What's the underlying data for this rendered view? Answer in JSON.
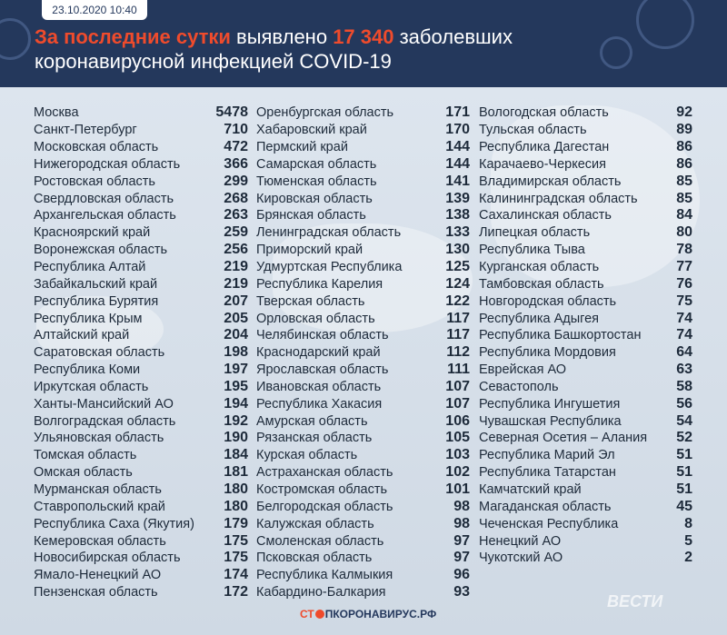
{
  "header": {
    "date": "23.10.2020 10:40",
    "title_lead": "За последние сутки",
    "title_mid": " выявлено ",
    "title_count": "17 340",
    "title_tail": " заболевших",
    "title_line2": "коронавирусной инфекцией COVID-19"
  },
  "columns": [
    [
      {
        "name": "Москва",
        "value": "5478"
      },
      {
        "name": "Санкт-Петербург",
        "value": "710"
      },
      {
        "name": "Московская область",
        "value": "472"
      },
      {
        "name": "Нижегородская область",
        "value": "366"
      },
      {
        "name": "Ростовская область",
        "value": "299"
      },
      {
        "name": "Свердловская область",
        "value": "268"
      },
      {
        "name": "Архангельская область",
        "value": "263"
      },
      {
        "name": "Красноярский край",
        "value": "259"
      },
      {
        "name": "Воронежская область",
        "value": "256"
      },
      {
        "name": "Республика Алтай",
        "value": "219"
      },
      {
        "name": "Забайкальский край",
        "value": "219"
      },
      {
        "name": "Республика Бурятия",
        "value": "207"
      },
      {
        "name": "Республика Крым",
        "value": "205"
      },
      {
        "name": "Алтайский край",
        "value": "204"
      },
      {
        "name": "Саратовская область",
        "value": "198"
      },
      {
        "name": "Республика Коми",
        "value": "197"
      },
      {
        "name": "Иркутская область",
        "value": "195"
      },
      {
        "name": "Ханты-Мансийский АО",
        "value": "194"
      },
      {
        "name": "Волгоградская область",
        "value": "192"
      },
      {
        "name": "Ульяновская область",
        "value": "190"
      },
      {
        "name": "Томская область",
        "value": "184"
      },
      {
        "name": "Омская область",
        "value": "181"
      },
      {
        "name": "Мурманская область",
        "value": "180"
      },
      {
        "name": "Ставропольский край",
        "value": "180"
      },
      {
        "name": "Республика Саха (Якутия)",
        "value": "179"
      },
      {
        "name": "Кемеровская область",
        "value": "175"
      },
      {
        "name": "Новосибирская область",
        "value": "175"
      },
      {
        "name": "Ямало-Ненецкий АО",
        "value": "174"
      },
      {
        "name": "Пензенская область",
        "value": "172"
      }
    ],
    [
      {
        "name": "Оренбургская область",
        "value": "171"
      },
      {
        "name": "Хабаровский край",
        "value": "170"
      },
      {
        "name": "Пермский край",
        "value": "144"
      },
      {
        "name": "Самарская область",
        "value": "144"
      },
      {
        "name": "Тюменская область",
        "value": "141"
      },
      {
        "name": "Кировская область",
        "value": "139"
      },
      {
        "name": "Брянская область",
        "value": "138"
      },
      {
        "name": "Ленинградская область",
        "value": "133"
      },
      {
        "name": "Приморский край",
        "value": "130"
      },
      {
        "name": "Удмуртская Республика",
        "value": "125"
      },
      {
        "name": "Республика Карелия",
        "value": "124"
      },
      {
        "name": "Тверская область",
        "value": "122"
      },
      {
        "name": "Орловская область",
        "value": "117"
      },
      {
        "name": "Челябинская область",
        "value": "117"
      },
      {
        "name": "Краснодарский край",
        "value": "112"
      },
      {
        "name": "Ярославская область",
        "value": "111"
      },
      {
        "name": "Ивановская область",
        "value": "107"
      },
      {
        "name": "Республика Хакасия",
        "value": "107"
      },
      {
        "name": "Амурская область",
        "value": "106"
      },
      {
        "name": "Рязанская область",
        "value": "105"
      },
      {
        "name": "Курская область",
        "value": "103"
      },
      {
        "name": "Астраханская область",
        "value": "102"
      },
      {
        "name": "Костромская область",
        "value": "101"
      },
      {
        "name": "Белгородская область",
        "value": "98"
      },
      {
        "name": "Калужская область",
        "value": "98"
      },
      {
        "name": "Смоленская область",
        "value": "97"
      },
      {
        "name": "Псковская область",
        "value": "97"
      },
      {
        "name": "Республика Калмыкия",
        "value": "96"
      },
      {
        "name": "Кабардино-Балкария",
        "value": "93"
      }
    ],
    [
      {
        "name": "Вологодская область",
        "value": "92"
      },
      {
        "name": "Тульская область",
        "value": "89"
      },
      {
        "name": "Республика Дагестан",
        "value": "86"
      },
      {
        "name": "Карачаево-Черкесия",
        "value": "86"
      },
      {
        "name": "Владимирская область",
        "value": "85"
      },
      {
        "name": "Калининградская область",
        "value": "85"
      },
      {
        "name": "Сахалинская область",
        "value": "84"
      },
      {
        "name": "Липецкая область",
        "value": "80"
      },
      {
        "name": "Республика Тыва",
        "value": "78"
      },
      {
        "name": "Курганская область",
        "value": "77"
      },
      {
        "name": "Тамбовская область",
        "value": "76"
      },
      {
        "name": "Новгородская область",
        "value": "75"
      },
      {
        "name": "Республика Адыгея",
        "value": "74"
      },
      {
        "name": "Республика Башкортостан",
        "value": "74"
      },
      {
        "name": "Республика Мордовия",
        "value": "64"
      },
      {
        "name": "Еврейская АО",
        "value": "63"
      },
      {
        "name": "Севастополь",
        "value": "58"
      },
      {
        "name": "Республика Ингушетия",
        "value": "56"
      },
      {
        "name": "Чувашская Республика",
        "value": "54"
      },
      {
        "name": "Северная Осетия – Алания",
        "value": "52"
      },
      {
        "name": "Республика Марий Эл",
        "value": "51"
      },
      {
        "name": "Республика Татарстан",
        "value": "51"
      },
      {
        "name": "Камчатский край",
        "value": "51"
      },
      {
        "name": "Магаданская область",
        "value": "45"
      },
      {
        "name": "Чеченская Республика",
        "value": "8"
      },
      {
        "name": "Ненецкий АО",
        "value": "5"
      },
      {
        "name": "Чукотский АО",
        "value": "2"
      }
    ]
  ],
  "footer": {
    "brand_left": "СТ",
    "brand_right": "ПКОРОНАВИРУС.РФ",
    "watermark": "ВЕСТИ"
  },
  "colors": {
    "header_bg": "#24385c",
    "accent": "#ef4b2c",
    "text": "#1d2a3a"
  }
}
